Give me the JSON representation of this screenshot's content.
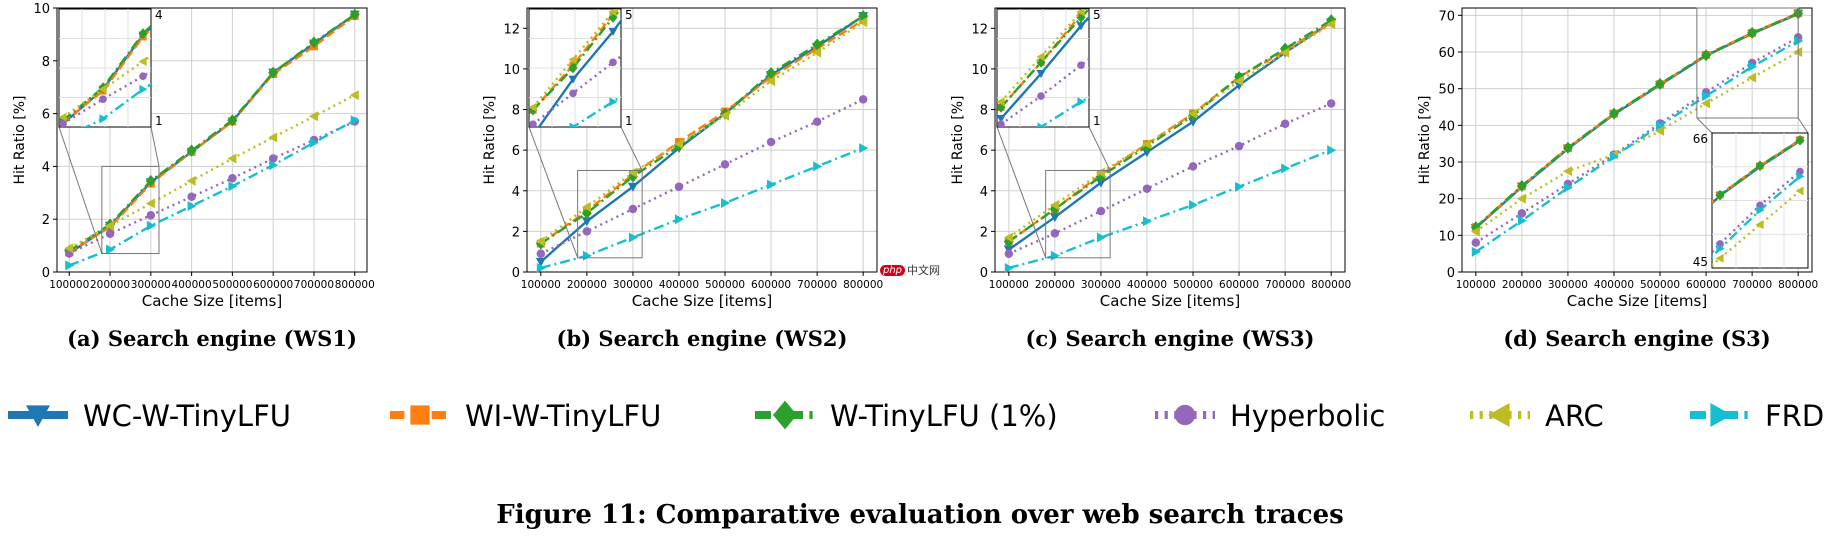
{
  "figure_caption": "Figure 11: Comparative evaluation over web search traces",
  "watermark": {
    "logo": "php",
    "text": "中文网"
  },
  "colors": {
    "WC-W-TinyLFU": "#1f77b4",
    "WI-W-TinyLFU": "#ff7f0e",
    "W-TinyLFU (1%)": "#2ca02c",
    "Hyperbolic": "#9467bd",
    "ARC": "#bcbd22",
    "FRD": "#17becf"
  },
  "legend": [
    {
      "name": "WC-W-TinyLFU",
      "marker": "triangle-down",
      "line": "solid"
    },
    {
      "name": "WI-W-TinyLFU",
      "marker": "square",
      "line": "dashed"
    },
    {
      "name": "W-TinyLFU (1%)",
      "marker": "diamond",
      "line": "dashdot"
    },
    {
      "name": "Hyperbolic",
      "marker": "circle",
      "line": "dotted"
    },
    {
      "name": "ARC",
      "marker": "triangle-left",
      "line": "dotted"
    },
    {
      "name": "FRD",
      "marker": "triangle-right",
      "line": "dashdot"
    }
  ],
  "chart_data": [
    {
      "type": "line",
      "caption": "(a) Search engine (WS1)",
      "xlabel": "Cache Size [items]",
      "ylabel": "Hit Ratio [%]",
      "x": [
        100000,
        200000,
        300000,
        400000,
        500000,
        600000,
        700000,
        800000
      ],
      "xticks": [
        "100000",
        "200000",
        "300000",
        "400000",
        "500000",
        "600000",
        "700000",
        "800000"
      ],
      "xlim": [
        70000,
        830000
      ],
      "ylim": [
        0,
        10
      ],
      "yticks": [
        0,
        2,
        4,
        6,
        8,
        10
      ],
      "grid": true,
      "series": [
        {
          "name": "WC-W-TinyLFU",
          "values": [
            0.7,
            1.75,
            3.4,
            4.55,
            5.7,
            7.55,
            8.65,
            9.75
          ]
        },
        {
          "name": "WI-W-TinyLFU",
          "values": [
            0.75,
            1.7,
            3.35,
            4.55,
            5.7,
            7.5,
            8.55,
            9.7
          ]
        },
        {
          "name": "W-TinyLFU (1%)",
          "values": [
            0.8,
            1.8,
            3.45,
            4.6,
            5.75,
            7.55,
            8.7,
            9.75
          ]
        },
        {
          "name": "Hyperbolic",
          "values": [
            0.7,
            1.45,
            2.15,
            2.85,
            3.55,
            4.3,
            5.0,
            5.7
          ]
        },
        {
          "name": "ARC",
          "values": [
            0.9,
            1.75,
            2.6,
            3.45,
            4.3,
            5.1,
            5.9,
            6.7
          ]
        },
        {
          "name": "FRD",
          "values": [
            0.25,
            0.85,
            1.75,
            2.5,
            3.25,
            4.05,
            4.9,
            5.75
          ]
        }
      ],
      "inset": {
        "ylabel_ticks": [
          "4",
          "1"
        ],
        "yrange": [
          0.6,
          4.2
        ],
        "xrange": [
          90000,
          320000
        ],
        "placement": "top-left",
        "source_box": {
          "xlim": [
            180000,
            320000
          ],
          "ylim": [
            0.7,
            4.0
          ]
        }
      }
    },
    {
      "type": "line",
      "caption": "(b) Search engine (WS2)",
      "xlabel": "Cache Size [items]",
      "ylabel": "Hit Ratio [%]",
      "x": [
        100000,
        200000,
        300000,
        400000,
        500000,
        600000,
        700000,
        800000
      ],
      "xticks": [
        "100000",
        "200000",
        "300000",
        "400000",
        "500000",
        "600000",
        "700000",
        "800000"
      ],
      "xlim": [
        70000,
        830000
      ],
      "ylim": [
        0,
        13
      ],
      "yticks": [
        0,
        2,
        4,
        6,
        8,
        10,
        12
      ],
      "grid": true,
      "series": [
        {
          "name": "WC-W-TinyLFU",
          "values": [
            0.5,
            2.5,
            4.2,
            6.1,
            7.8,
            9.7,
            11.1,
            12.6
          ]
        },
        {
          "name": "WI-W-TinyLFU",
          "values": [
            1.4,
            3.0,
            4.8,
            6.4,
            7.9,
            9.6,
            11.0,
            12.4
          ]
        },
        {
          "name": "W-TinyLFU (1%)",
          "values": [
            1.4,
            2.9,
            4.7,
            6.2,
            7.8,
            9.8,
            11.2,
            12.6
          ]
        },
        {
          "name": "Hyperbolic",
          "values": [
            0.9,
            2.0,
            3.1,
            4.2,
            5.3,
            6.4,
            7.4,
            8.5
          ]
        },
        {
          "name": "ARC",
          "values": [
            1.5,
            3.2,
            4.9,
            6.3,
            7.7,
            9.4,
            10.8,
            12.3
          ]
        },
        {
          "name": "FRD",
          "values": [
            0.2,
            0.8,
            1.7,
            2.6,
            3.4,
            4.3,
            5.2,
            6.1
          ]
        }
      ],
      "inset": {
        "ylabel_ticks": [
          "5",
          "1"
        ],
        "yrange": [
          0.8,
          5.0
        ],
        "xrange": [
          90000,
          320000
        ],
        "placement": "top-left",
        "source_box": {
          "xlim": [
            180000,
            320000
          ],
          "ylim": [
            0.7,
            5.0
          ]
        }
      }
    },
    {
      "type": "line",
      "caption": "(c) Search engine (WS3)",
      "xlabel": "Cache Size [items]",
      "ylabel": "Hit Ratio [%]",
      "x": [
        100000,
        200000,
        300000,
        400000,
        500000,
        600000,
        700000,
        800000
      ],
      "xticks": [
        "100000",
        "200000",
        "300000",
        "400000",
        "500000",
        "600000",
        "700000",
        "800000"
      ],
      "xlim": [
        70000,
        830000
      ],
      "ylim": [
        0,
        13
      ],
      "yticks": [
        0,
        2,
        4,
        6,
        8,
        10,
        12
      ],
      "grid": true,
      "series": [
        {
          "name": "WC-W-TinyLFU",
          "values": [
            1.1,
            2.7,
            4.4,
            5.9,
            7.4,
            9.2,
            10.8,
            12.3
          ]
        },
        {
          "name": "WI-W-TinyLFU",
          "values": [
            1.5,
            3.1,
            4.8,
            6.3,
            7.8,
            9.6,
            10.9,
            12.3
          ]
        },
        {
          "name": "W-TinyLFU (1%)",
          "values": [
            1.5,
            3.1,
            4.7,
            6.2,
            7.7,
            9.6,
            11.0,
            12.4
          ]
        },
        {
          "name": "Hyperbolic",
          "values": [
            0.9,
            1.9,
            3.0,
            4.1,
            5.2,
            6.2,
            7.3,
            8.3
          ]
        },
        {
          "name": "ARC",
          "values": [
            1.7,
            3.3,
            4.9,
            6.3,
            7.8,
            9.4,
            10.8,
            12.2
          ]
        },
        {
          "name": "FRD",
          "values": [
            0.2,
            0.8,
            1.7,
            2.5,
            3.3,
            4.2,
            5.1,
            6.0
          ]
        }
      ],
      "inset": {
        "ylabel_ticks": [
          "5",
          "1"
        ],
        "yrange": [
          0.8,
          5.0
        ],
        "xrange": [
          90000,
          320000
        ],
        "placement": "top-left",
        "source_box": {
          "xlim": [
            180000,
            320000
          ],
          "ylim": [
            0.7,
            5.0
          ]
        }
      }
    },
    {
      "type": "line",
      "caption": "(d) Search engine (S3)",
      "xlabel": "Cache Size [items]",
      "ylabel": "Hit Ratio [%]",
      "x": [
        100000,
        200000,
        300000,
        400000,
        500000,
        600000,
        700000,
        800000
      ],
      "xticks": [
        "100000",
        "200000",
        "300000",
        "400000",
        "500000",
        "600000",
        "700000",
        "800000"
      ],
      "xlim": [
        70000,
        830000
      ],
      "ylim": [
        0,
        72
      ],
      "yticks": [
        0,
        10,
        20,
        30,
        40,
        50,
        60,
        70
      ],
      "grid": true,
      "series": [
        {
          "name": "WC-W-TinyLFU",
          "values": [
            12.0,
            23.2,
            33.6,
            43.0,
            51.0,
            59.0,
            65.0,
            70.4
          ]
        },
        {
          "name": "WI-W-TinyLFU",
          "values": [
            12.2,
            23.4,
            33.8,
            43.2,
            51.2,
            59.2,
            65.2,
            70.6
          ]
        },
        {
          "name": "W-TinyLFU (1%)",
          "values": [
            12.2,
            23.5,
            33.9,
            43.2,
            51.3,
            59.1,
            65.2,
            70.5
          ]
        },
        {
          "name": "Hyperbolic",
          "values": [
            8.0,
            16.0,
            24.0,
            32.0,
            40.5,
            49.0,
            57.0,
            64.0
          ]
        },
        {
          "name": "ARC",
          "values": [
            11.0,
            20.0,
            27.5,
            32.0,
            38.5,
            46.0,
            53.0,
            60.0
          ]
        },
        {
          "name": "FRD",
          "values": [
            5.5,
            14.0,
            23.0,
            31.5,
            40.0,
            48.0,
            56.0,
            63.0
          ]
        }
      ],
      "inset": {
        "ylabel_ticks": [
          "66",
          "45"
        ],
        "yrange": [
          44,
          72
        ],
        "xrange": [
          580000,
          820000
        ],
        "placement": "bottom-right",
        "source_box": {
          "xlim": [
            580000,
            800000
          ],
          "ylim": [
            42,
            72
          ]
        }
      }
    }
  ]
}
